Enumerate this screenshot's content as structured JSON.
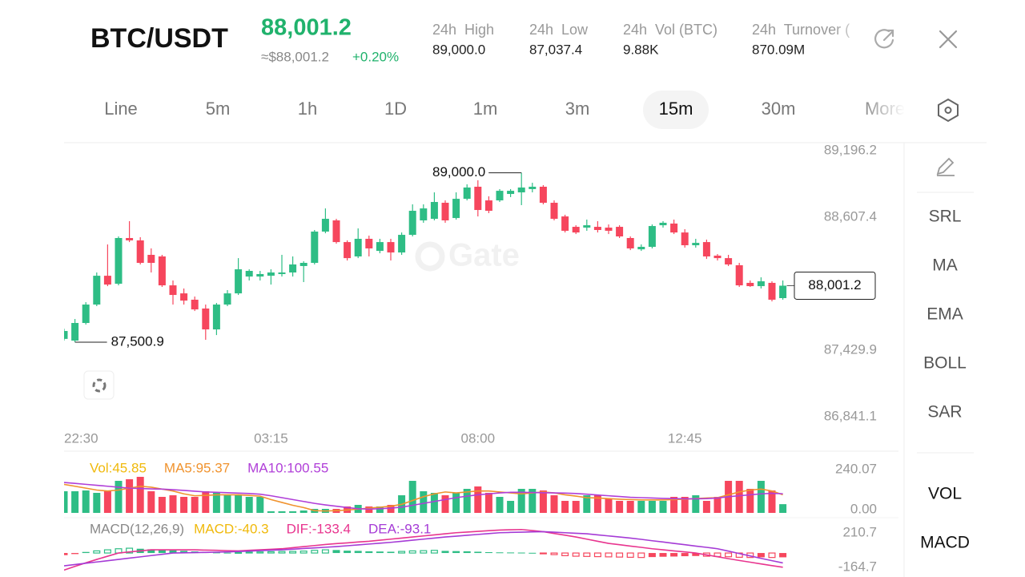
{
  "header": {
    "pair": "BTC/USDT",
    "price": "88,001.2",
    "price_usd": "≈$88,001.2",
    "change": "+0.20%",
    "stats": [
      {
        "label": "24h  High",
        "value": "89,000.0"
      },
      {
        "label": "24h  Low",
        "value": "87,037.4"
      },
      {
        "label": "24h  Vol (BTC)",
        "value": "9.88K"
      },
      {
        "label": "24h  Turnover (",
        "value": "870.09M"
      }
    ]
  },
  "tabs": {
    "items": [
      "Line",
      "5m",
      "1h",
      "1D",
      "1m",
      "3m",
      "15m",
      "30m",
      "More"
    ],
    "active": "15m"
  },
  "sidebar": {
    "tools": [
      "SRL",
      "MA",
      "EMA",
      "BOLL",
      "SAR"
    ],
    "indicators": [
      "VOL",
      "MACD"
    ]
  },
  "watermark": "Gate",
  "chart_data": [
    {
      "type": "candlestick",
      "categories": [
        "22:30",
        null,
        null,
        null,
        null,
        null,
        null,
        null,
        null,
        null,
        null,
        null,
        null,
        null,
        null,
        null,
        null,
        null,
        null,
        "03:15",
        null,
        null,
        null,
        null,
        null,
        null,
        null,
        null,
        null,
        null,
        null,
        null,
        null,
        null,
        null,
        null,
        null,
        null,
        "08:00",
        null,
        null,
        null,
        null,
        null,
        null,
        null,
        null,
        null,
        null,
        null,
        null,
        null,
        null,
        null,
        null,
        null,
        null,
        "12:45",
        null,
        null,
        null,
        null,
        null,
        null,
        null,
        null,
        null
      ],
      "open": [
        87530,
        87515,
        87671,
        87834,
        88089,
        88018,
        88423,
        88402,
        88274,
        88260,
        88004,
        87933,
        87877,
        87799,
        87614,
        87834,
        87933,
        88082,
        88082,
        88089,
        88104,
        88118,
        88175,
        88203,
        88480,
        88579,
        88387,
        88260,
        88416,
        88309,
        88387,
        88295,
        88451,
        88579,
        88593,
        88735,
        88600,
        88770,
        88877,
        88756,
        88756,
        88813,
        88827,
        88856,
        88877,
        88735,
        88614,
        88522,
        88515,
        88522,
        88515,
        88522,
        88423,
        88323,
        88345,
        88536,
        88551,
        88472,
        88359,
        88387,
        88267,
        88245,
        88182,
        88026,
        87997,
        88026,
        87891
      ],
      "high": [
        87620,
        87706,
        87855,
        88118,
        88366,
        88437,
        88572,
        88430,
        88331,
        88274,
        88047,
        87976,
        87905,
        87834,
        87848,
        87962,
        88245,
        88146,
        88132,
        88146,
        88274,
        88260,
        88217,
        88494,
        88685,
        88593,
        88402,
        88508,
        88444,
        88416,
        88416,
        88472,
        88721,
        88721,
        88827,
        88756,
        88827,
        88898,
        88934,
        88792,
        88856,
        88856,
        89000.0,
        88912,
        88891,
        88756,
        88629,
        88536,
        88586,
        88572,
        88543,
        88536,
        88437,
        88366,
        88543,
        88572,
        88586,
        88501,
        88416,
        88409,
        88281,
        88274,
        88203,
        88047,
        88075,
        88040,
        88047
      ],
      "low": [
        87515,
        87500.9,
        87657,
        87820,
        87997,
        88004,
        88387,
        88189,
        88118,
        87990,
        87834,
        87834,
        87777,
        87522,
        87564,
        87820,
        87919,
        88047,
        88047,
        88011,
        88082,
        88082,
        88033,
        88189,
        88465,
        88373,
        88224,
        88245,
        88260,
        88288,
        88224,
        88274,
        88437,
        88558,
        88579,
        88558,
        88586,
        88756,
        88614,
        88643,
        88742,
        88785,
        88714,
        88827,
        88721,
        88579,
        88472,
        88458,
        88487,
        88472,
        88458,
        88423,
        88316,
        88309,
        88331,
        88515,
        88458,
        88338,
        88338,
        88238,
        88224,
        88175,
        87990,
        87990,
        87976,
        87862,
        87877
      ],
      "close": [
        87600,
        87671,
        87834,
        88089,
        88011,
        88423,
        88402,
        88203,
        88203,
        88004,
        87919,
        87869,
        87791,
        87614,
        87834,
        87933,
        88146,
        88132,
        88104,
        88118,
        88118,
        88189,
        88203,
        88480,
        88593,
        88387,
        88245,
        88416,
        88331,
        88387,
        88295,
        88451,
        88664,
        88685,
        88742,
        88579,
        88770,
        88870,
        88671,
        88664,
        88841,
        88841,
        88870,
        88877,
        88735,
        88593,
        88487,
        88472,
        88536,
        88494,
        88487,
        88437,
        88331,
        88345,
        88529,
        88558,
        88472,
        88359,
        88380,
        88260,
        88245,
        88189,
        88004,
        87997,
        88040,
        87877,
        88001.2
      ],
      "up_color": "#2ebd85",
      "down_color": "#f6465d",
      "ylim": [
        86841.1,
        89196.2
      ],
      "yticks": [
        {
          "value": 86841.1,
          "label": "86,841.1"
        },
        {
          "value": 87429.9,
          "label": "87,429.9"
        },
        {
          "value": 88607.4,
          "label": "88,607.4"
        },
        {
          "value": 89196.2,
          "label": "89,196.2"
        }
      ],
      "grid": false,
      "high_label": {
        "value": 89000.0,
        "label": "89,000.0"
      },
      "low_label": {
        "value": 87500.9,
        "label": "87,500.9"
      },
      "last_price": {
        "value": 88001.2,
        "label": "88,001.2"
      }
    },
    {
      "type": "bar",
      "ylim": [
        0,
        240.07
      ],
      "yticks": [
        {
          "value": 0,
          "label": "0.00"
        },
        240.07
      ],
      "series": [
        {
          "name": "Vol:45.85",
          "color": "#f0b90b",
          "type": "bar",
          "values": [
            113.7,
            113.7,
            117.9,
            105.3,
            113.7,
            168.4,
            176.8,
            189.5,
            113.7,
            84.2,
            92.6,
            84.2,
            84.2,
            113.7,
            105.3,
            92.6,
            92.6,
            84.2,
            84.2,
            8.4,
            8.4,
            8.4,
            12.6,
            21.1,
            21.1,
            21.1,
            33.7,
            42.1,
            33.7,
            33.7,
            42.1,
            92.6,
            168.4,
            113.7,
            105.3,
            92.6,
            105.3,
            126.3,
            138.9,
            105.3,
            84.2,
            63.2,
            126.3,
            126.3,
            117.9,
            92.6,
            63.2,
            63.2,
            92.6,
            92.6,
            75.8,
            63.2,
            63.2,
            63.2,
            63.2,
            63.2,
            84.2,
            84.2,
            92.6,
            63.2,
            84.2,
            168.4,
            168.4,
            126.3,
            168.4,
            117.9,
            45.85
          ]
        },
        {
          "name": "MA5:95.37",
          "color": "#f0932e",
          "type": "line",
          "values": [
            150,
            140,
            130,
            120,
            115,
            120,
            130,
            140,
            135,
            125,
            115,
            100,
            90,
            92,
            95,
            95,
            95,
            92,
            88,
            70,
            55,
            40,
            28,
            12,
            10,
            12,
            15,
            20,
            25,
            30,
            35,
            45,
            65,
            85,
            100,
            110,
            105,
            110,
            115,
            115,
            110,
            105,
            100,
            105,
            110,
            105,
            95,
            88,
            80,
            78,
            75,
            72,
            70,
            68,
            68,
            68,
            70,
            72,
            75,
            78,
            80,
            95,
            110,
            120,
            125,
            115,
            95.37
          ]
        },
        {
          "name": "MA10:100.55",
          "color": "#b03fd8",
          "type": "line",
          "values": [
            160,
            155,
            150,
            145,
            140,
            135,
            130,
            128,
            126,
            125,
            122,
            118,
            114,
            110,
            108,
            106,
            104,
            102,
            98,
            90,
            80,
            70,
            60,
            50,
            42,
            35,
            28,
            22,
            20,
            22,
            25,
            30,
            40,
            50,
            60,
            70,
            80,
            88,
            95,
            100,
            105,
            108,
            108,
            107,
            106,
            105,
            104,
            102,
            98,
            94,
            90,
            86,
            82,
            80,
            78,
            76,
            75,
            74,
            74,
            75,
            78,
            85,
            90,
            95,
            100,
            103,
            100.55
          ]
        }
      ]
    },
    {
      "type": "bar",
      "title": "MACD(12,26,9)",
      "ylim": [
        -164.7,
        210.7
      ],
      "yticks": [
        -164.7,
        210.7
      ],
      "series": [
        {
          "name": "MACD:-40.3",
          "color": "#f0b90b",
          "type": "bar",
          "values": [
            -20,
            -10,
            10,
            20,
            30,
            40,
            45,
            40,
            35,
            30,
            25,
            20,
            15,
            10,
            5,
            3,
            5,
            8,
            10,
            12,
            14,
            15,
            18,
            25,
            30,
            28,
            22,
            20,
            16,
            14,
            12,
            15,
            20,
            22,
            25,
            20,
            18,
            16,
            12,
            8,
            6,
            5,
            4,
            2,
            -5,
            -15,
            -25,
            -30,
            -32,
            -34,
            -36,
            -38,
            -40,
            -42,
            -38,
            -35,
            -33,
            -30,
            -28,
            -30,
            -33,
            -35,
            -40,
            -42,
            -40,
            -42,
            -40.3
          ]
        },
        {
          "name": "DIF:-133.4",
          "color": "#e8358f",
          "type": "line",
          "values": [
            -160,
            -125,
            -92,
            -60,
            -30,
            0,
            10,
            20,
            30,
            30,
            30,
            30,
            30,
            27,
            25,
            22,
            20,
            25,
            30,
            35,
            40,
            50,
            60,
            70,
            80,
            88,
            95,
            103,
            110,
            120,
            130,
            140,
            150,
            160,
            170,
            180,
            190,
            196,
            203,
            209,
            215,
            218,
            220,
            210,
            200,
            183,
            167,
            150,
            130,
            110,
            90,
            78,
            65,
            53,
            40,
            30,
            20,
            10,
            0,
            -18,
            -35,
            -53,
            -70,
            -86,
            -102,
            -118,
            -133.4
          ]
        },
        {
          "name": "DEA:-93.1",
          "color": "#a53bd6",
          "type": "line",
          "values": [
            -120,
            -108,
            -96,
            -84,
            -72,
            -60,
            -48,
            -36,
            -24,
            -12,
            0,
            2,
            4,
            6,
            8,
            10,
            14,
            18,
            22,
            26,
            30,
            36,
            42,
            48,
            54,
            60,
            68,
            76,
            84,
            92,
            100,
            110,
            120,
            130,
            140,
            150,
            158,
            166,
            174,
            182,
            190,
            193,
            195,
            198,
            200,
            195,
            190,
            185,
            180,
            170,
            160,
            150,
            140,
            128,
            115,
            103,
            90,
            78,
            65,
            53,
            40,
            18,
            -5,
            -27,
            -50,
            -72,
            -93.1
          ]
        }
      ]
    }
  ]
}
